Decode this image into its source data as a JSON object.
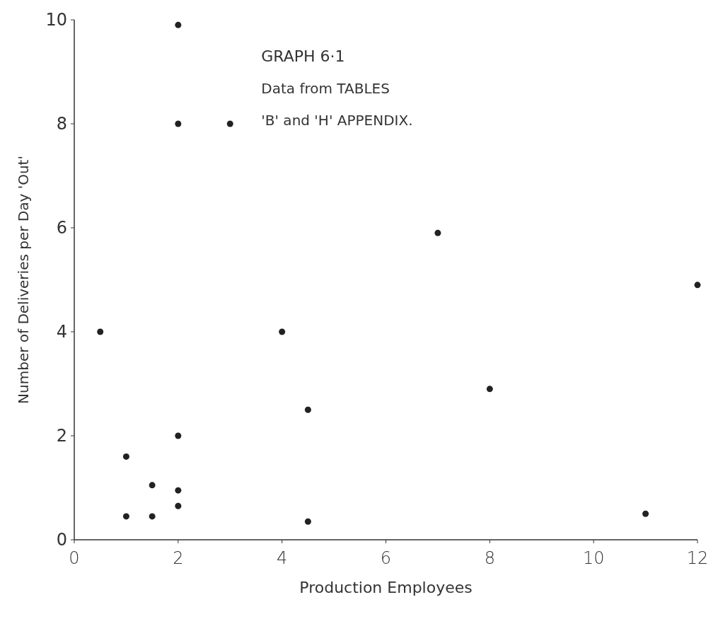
{
  "chart_data": {
    "type": "scatter",
    "title": "GRAPH 6·1",
    "xlabel": "Production Employees",
    "ylabel": "Number of Deliveries per Day 'Out'",
    "annotations": [
      "Data from TABLES",
      "'B' and 'H' APPENDIX."
    ],
    "x": [
      2,
      2,
      3,
      7,
      0.5,
      4,
      12,
      8,
      4.5,
      1,
      2,
      1.5,
      2,
      2,
      1,
      1.5,
      4.5,
      11
    ],
    "values": [
      9.9,
      8,
      8,
      5.9,
      4,
      4,
      4.9,
      2.9,
      2.5,
      1.6,
      2,
      1.05,
      0.95,
      0.65,
      0.45,
      0.45,
      0.35,
      0.5
    ],
    "color": "#222222",
    "marker": "circle",
    "xlim": [
      0,
      12
    ],
    "xticks": [
      0,
      2,
      4,
      6,
      8,
      10,
      12
    ],
    "ylim": [
      0,
      10
    ],
    "yticks": [
      0,
      2,
      4,
      6,
      8,
      10
    ],
    "grid": false
  }
}
